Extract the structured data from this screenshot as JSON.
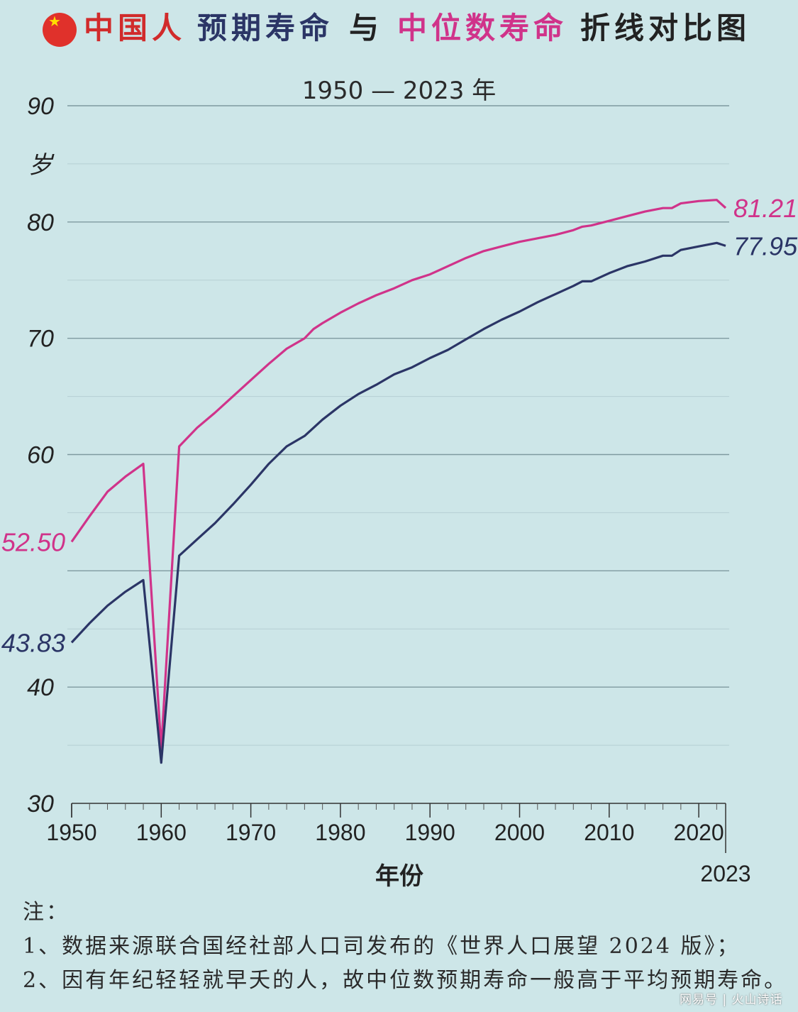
{
  "title": {
    "part1": "中国人",
    "part2": "预期寿命",
    "part3": "与",
    "part4": "中位数寿命",
    "part5": "折线对比图",
    "colors": {
      "red": "#d12b2b",
      "navy": "#2b3566",
      "pink": "#d0338a",
      "dark": "#222222"
    }
  },
  "notes": {
    "heading": "注：",
    "line1": "1、数据来源联合国经社部人口司发布的《世界人口展望 2024 版》；",
    "line2": "2、因有年纪轻轻就早夭的人，故中位数预期寿命一般高于平均预期寿命。"
  },
  "watermark": "网易号 | 火山诗话",
  "chart_data": {
    "type": "line",
    "subtitle": "1950 — 2023 年",
    "xlabel": "年份",
    "ylabel": "岁",
    "xlim": [
      1950,
      2023
    ],
    "ylim": [
      30,
      90
    ],
    "xticks": [
      1950,
      1960,
      1970,
      1980,
      1990,
      2000,
      2010,
      2020
    ],
    "xtick_labels": [
      "1950",
      "1960",
      "1970",
      "1980",
      "1990",
      "2000",
      "2010",
      "2020"
    ],
    "extra_xtick": {
      "value": 2023,
      "label": "2023"
    },
    "yticks": [
      30,
      40,
      50,
      60,
      70,
      80,
      90
    ],
    "ytick_labels": [
      "30",
      "40",
      "",
      "60",
      "70",
      "80",
      "90"
    ],
    "grid": true,
    "series": [
      {
        "color": "#d0338a",
        "start_label": "52.50",
        "end_label": "81.21",
        "x": [
          1950,
          1952,
          1954,
          1956,
          1958,
          1960,
          1962,
          1964,
          1966,
          1968,
          1970,
          1972,
          1974,
          1976,
          1977,
          1978,
          1980,
          1982,
          1984,
          1986,
          1988,
          1990,
          1992,
          1994,
          1996,
          1998,
          2000,
          2002,
          2004,
          2006,
          2007,
          2008,
          2010,
          2012,
          2014,
          2016,
          2017,
          2018,
          2020,
          2022,
          2023
        ],
        "values": [
          52.5,
          54.7,
          56.8,
          58.1,
          59.2,
          34.7,
          60.7,
          62.3,
          63.6,
          65.0,
          66.4,
          67.8,
          69.1,
          70.0,
          70.8,
          71.3,
          72.2,
          73.0,
          73.7,
          74.3,
          75.0,
          75.5,
          76.2,
          76.9,
          77.5,
          77.9,
          78.3,
          78.6,
          78.9,
          79.3,
          79.6,
          79.7,
          80.1,
          80.5,
          80.9,
          81.2,
          81.2,
          81.6,
          81.8,
          81.9,
          81.21
        ]
      },
      {
        "color": "#2b3566",
        "start_label": "43.83",
        "end_label": "77.95",
        "x": [
          1950,
          1952,
          1954,
          1956,
          1958,
          1960,
          1962,
          1964,
          1966,
          1968,
          1970,
          1972,
          1974,
          1976,
          1977,
          1978,
          1980,
          1982,
          1984,
          1986,
          1988,
          1990,
          1992,
          1994,
          1996,
          1998,
          2000,
          2002,
          2004,
          2006,
          2007,
          2008,
          2010,
          2012,
          2014,
          2016,
          2017,
          2018,
          2020,
          2022,
          2023
        ],
        "values": [
          43.83,
          45.5,
          47.0,
          48.2,
          49.2,
          33.5,
          51.3,
          52.7,
          54.1,
          55.7,
          57.4,
          59.2,
          60.7,
          61.6,
          62.3,
          63.0,
          64.2,
          65.2,
          66.0,
          66.9,
          67.5,
          68.3,
          69.0,
          69.9,
          70.8,
          71.6,
          72.3,
          73.1,
          73.8,
          74.5,
          74.9,
          74.9,
          75.6,
          76.2,
          76.6,
          77.1,
          77.1,
          77.6,
          77.9,
          78.2,
          77.95
        ]
      }
    ]
  }
}
